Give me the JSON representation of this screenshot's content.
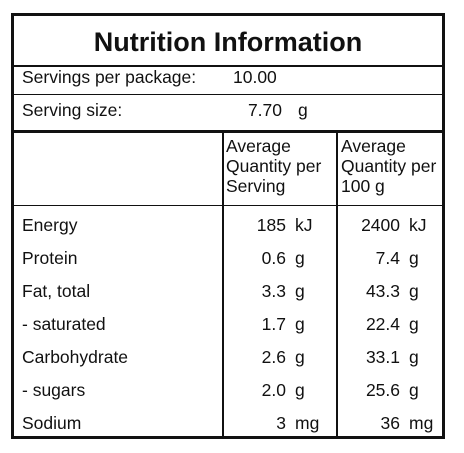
{
  "title": "Nutrition Information",
  "servings_per_package": {
    "label": "Servings per package:",
    "value": "10.00"
  },
  "serving_size": {
    "label": "Serving size:",
    "value": "7.70",
    "unit": "g"
  },
  "columns": {
    "per_serving": [
      "Average",
      "Quantity per",
      "Serving"
    ],
    "per_100g": [
      "Average",
      "Quantity per",
      "100 g"
    ]
  },
  "rows": [
    {
      "name": "Energy",
      "serving": "185",
      "serving_unit": "kJ",
      "per100": "2400",
      "per100_unit": "kJ"
    },
    {
      "name": "Protein",
      "serving": "0.6",
      "serving_unit": "g",
      "per100": "7.4",
      "per100_unit": "g"
    },
    {
      "name": "Fat, total",
      "serving": "3.3",
      "serving_unit": "g",
      "per100": "43.3",
      "per100_unit": "g"
    },
    {
      "name": "- saturated",
      "serving": "1.7",
      "serving_unit": "g",
      "per100": "22.4",
      "per100_unit": "g"
    },
    {
      "name": "Carbohydrate",
      "serving": "2.6",
      "serving_unit": "g",
      "per100": "33.1",
      "per100_unit": "g"
    },
    {
      "name": "- sugars",
      "serving": "2.0",
      "serving_unit": "g",
      "per100": "25.6",
      "per100_unit": "g"
    },
    {
      "name": "Sodium",
      "serving": "3",
      "serving_unit": "mg",
      "per100": "36",
      "per100_unit": "mg"
    }
  ]
}
